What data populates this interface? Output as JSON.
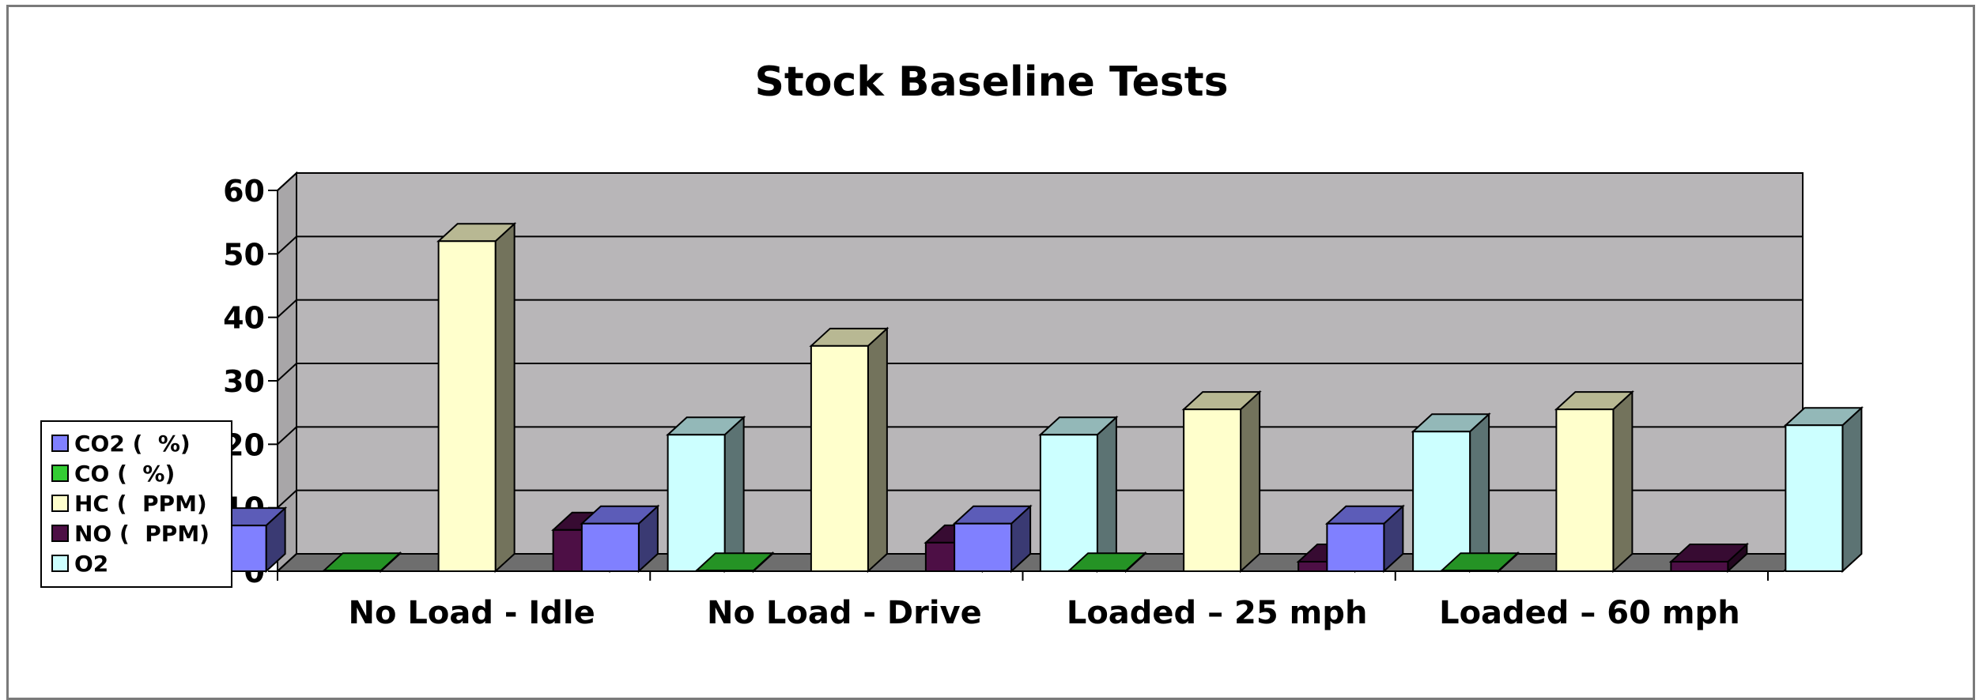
{
  "chart_data": {
    "type": "bar",
    "title": "Stock Baseline Tests",
    "categories": [
      "No Load - Idle",
      "No Load - Drive",
      "Loaded – 25 mph",
      "Loaded – 60 mph"
    ],
    "series": [
      {
        "name": "CO2 (  %)",
        "values": [
          7.2,
          7.5,
          7.5,
          7.5
        ],
        "color": "#8080ff"
      },
      {
        "name": "CO (  %)",
        "values": [
          0.1,
          0.1,
          0.1,
          0.1
        ],
        "color": "#33cc33"
      },
      {
        "name": "HC (  PPM)",
        "values": [
          52,
          35.5,
          25.5,
          25.5
        ],
        "color": "#ffffcc"
      },
      {
        "name": "NO (  PPM)",
        "values": [
          6.5,
          4.5,
          1.5,
          1.5
        ],
        "color": "#4d0f45"
      },
      {
        "name": "O2",
        "values": [
          21.5,
          21.5,
          22,
          23
        ],
        "color": "#ccffff"
      }
    ],
    "yticks": [
      0,
      10,
      20,
      30,
      40,
      50,
      60
    ],
    "ylim": [
      0,
      60
    ],
    "grid": true,
    "legend_position": "left",
    "plot_background": "#b8b6b8"
  }
}
